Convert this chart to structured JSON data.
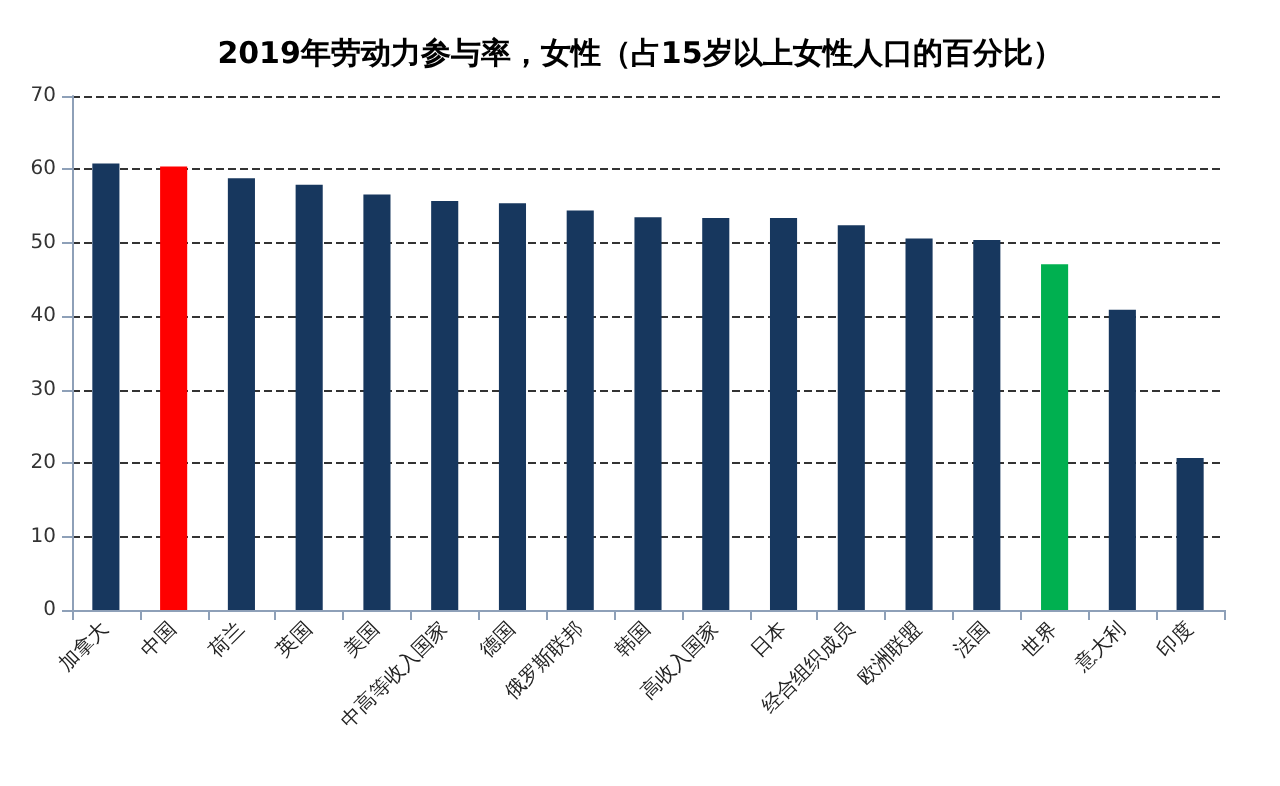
{
  "chart_data": {
    "type": "bar",
    "title": "2019年劳动力参与率，女性（占15岁以上女性人口的百分比）",
    "categories": [
      "加拿大",
      "中国",
      "荷兰",
      "英国",
      "美国",
      "中高等收入国家",
      "德国",
      "俄罗斯联邦",
      "韩国",
      "高收入国家",
      "日本",
      "经合组织成员",
      "欧洲联盟",
      "法国",
      "世界",
      "意大利",
      "印度"
    ],
    "values": [
      60.8,
      60.4,
      58.8,
      57.9,
      56.6,
      55.7,
      55.4,
      54.4,
      53.5,
      53.4,
      53.4,
      52.4,
      50.6,
      50.4,
      47.1,
      40.9,
      20.7
    ],
    "colors": [
      "#17375e",
      "#ff0000",
      "#17375e",
      "#17375e",
      "#17375e",
      "#17375e",
      "#17375e",
      "#17375e",
      "#17375e",
      "#17375e",
      "#17375e",
      "#17375e",
      "#17375e",
      "#17375e",
      "#00b050",
      "#17375e",
      "#17375e"
    ],
    "ylim": [
      0,
      70
    ],
    "yticks": [
      0,
      10,
      20,
      30,
      40,
      50,
      60,
      70
    ],
    "grid": "y"
  }
}
